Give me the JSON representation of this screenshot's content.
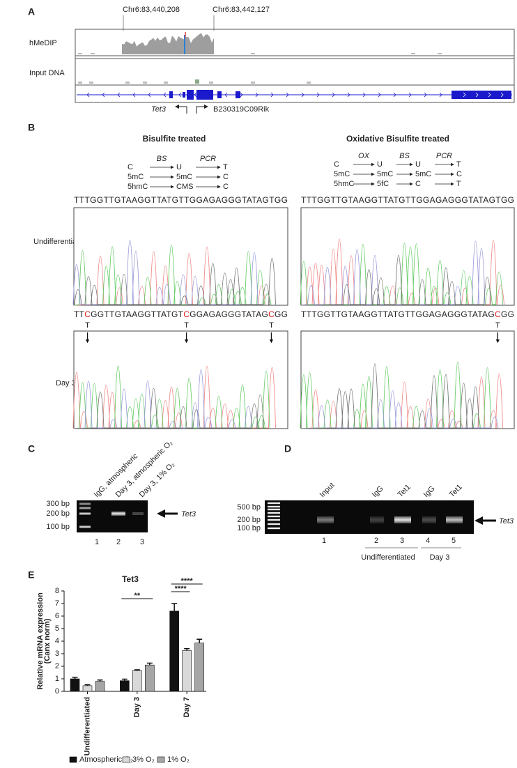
{
  "panel_a": {
    "label": "A",
    "coordinates": [
      "Chr6:83,440,208",
      "Chr6:83,442,127"
    ],
    "tracks": [
      "hMeDIP",
      "Input DNA"
    ],
    "genes": [
      "Tet3",
      "B230319C09Rik"
    ]
  },
  "panel_b": {
    "label": "B",
    "schemes": [
      {
        "title": "Bisulfite treated",
        "steps": [
          "BS",
          "PCR"
        ],
        "rows": [
          [
            "C",
            "U",
            "T"
          ],
          [
            "5mC",
            "5mC",
            "C"
          ],
          [
            "5hmC",
            "CMS",
            "C"
          ]
        ]
      },
      {
        "title": "Oxidative Bisulfite treated",
        "steps": [
          "OX",
          "BS",
          "PCR"
        ],
        "rows": [
          [
            "C",
            "U",
            "U",
            "T"
          ],
          [
            "5mC",
            "5mC",
            "5mC",
            "C"
          ],
          [
            "5hmC",
            "5fC",
            "C",
            "T"
          ]
        ]
      }
    ],
    "conditions": [
      "Undifferentiated",
      "Day 3"
    ],
    "sequences": [
      [
        [
          "TTTGGTTGTAAGGTTATGTTGGAGAGGGTATAGTGG"
        ],
        [
          "TTTGGTTGTAAGGTTATGTTGGAGAGGGTATAGTGG"
        ]
      ],
      [
        [
          "TT",
          "C",
          "GGTTGTAAGGTTATGT",
          "C",
          "GGAGAGGGTATAG",
          "C",
          "GG"
        ],
        [
          "TTTGGTTGTAAGGTTATGTTGGAGAGGGTATAG",
          "C",
          "GG"
        ]
      ]
    ],
    "conversion": "T"
  },
  "panel_c": {
    "label": "C",
    "lanes": [
      "IgG, atmospheric",
      "Day 3, atmospheric O₂",
      "Day 3, 1% O₂"
    ],
    "lane_numbers": [
      "1",
      "2",
      "3"
    ],
    "markers": [
      "300 bp",
      "200 bp",
      "100 bp"
    ],
    "target": "Tet3"
  },
  "panel_d": {
    "label": "D",
    "lanes": [
      "Input",
      "IgG",
      "Tet1",
      "IgG",
      "Tet1"
    ],
    "lane_numbers": [
      "1",
      "2",
      "3",
      "4",
      "5"
    ],
    "markers": [
      "500 bp",
      "200 bp",
      "100 bp"
    ],
    "groups": [
      "Undifferentiated",
      "Day 3"
    ],
    "target": "Tet3"
  },
  "chart_data": {
    "type": "bar",
    "label": "E",
    "title": "Tet3",
    "ylabel": [
      "Relative mRNA expression",
      "(Canx norm)"
    ],
    "categories": [
      "Undifferentiated",
      "Day 3",
      "Day 7"
    ],
    "series": [
      {
        "name": "Atmospheric O₂",
        "color": "#111111",
        "values": [
          1.0,
          0.85,
          6.4
        ],
        "errors": [
          0.12,
          0.12,
          0.6
        ]
      },
      {
        "name": "3% O₂",
        "color": "#d9d9d9",
        "values": [
          0.45,
          1.65,
          3.25
        ],
        "errors": [
          0.08,
          0.07,
          0.15
        ]
      },
      {
        "name": "1% O₂",
        "color": "#a6a6a6",
        "values": [
          0.8,
          2.1,
          3.85
        ],
        "errors": [
          0.1,
          0.15,
          0.3
        ]
      }
    ],
    "ylim": [
      0,
      8
    ],
    "yticks": [
      0,
      1,
      2,
      3,
      4,
      5,
      6,
      7,
      8
    ],
    "significance": [
      {
        "category": 1,
        "series": [
          0,
          2
        ],
        "label": "**"
      },
      {
        "category": 2,
        "series": [
          0,
          1
        ],
        "label": "****"
      },
      {
        "category": 2,
        "series": [
          0,
          2
        ],
        "label": "****"
      }
    ]
  }
}
